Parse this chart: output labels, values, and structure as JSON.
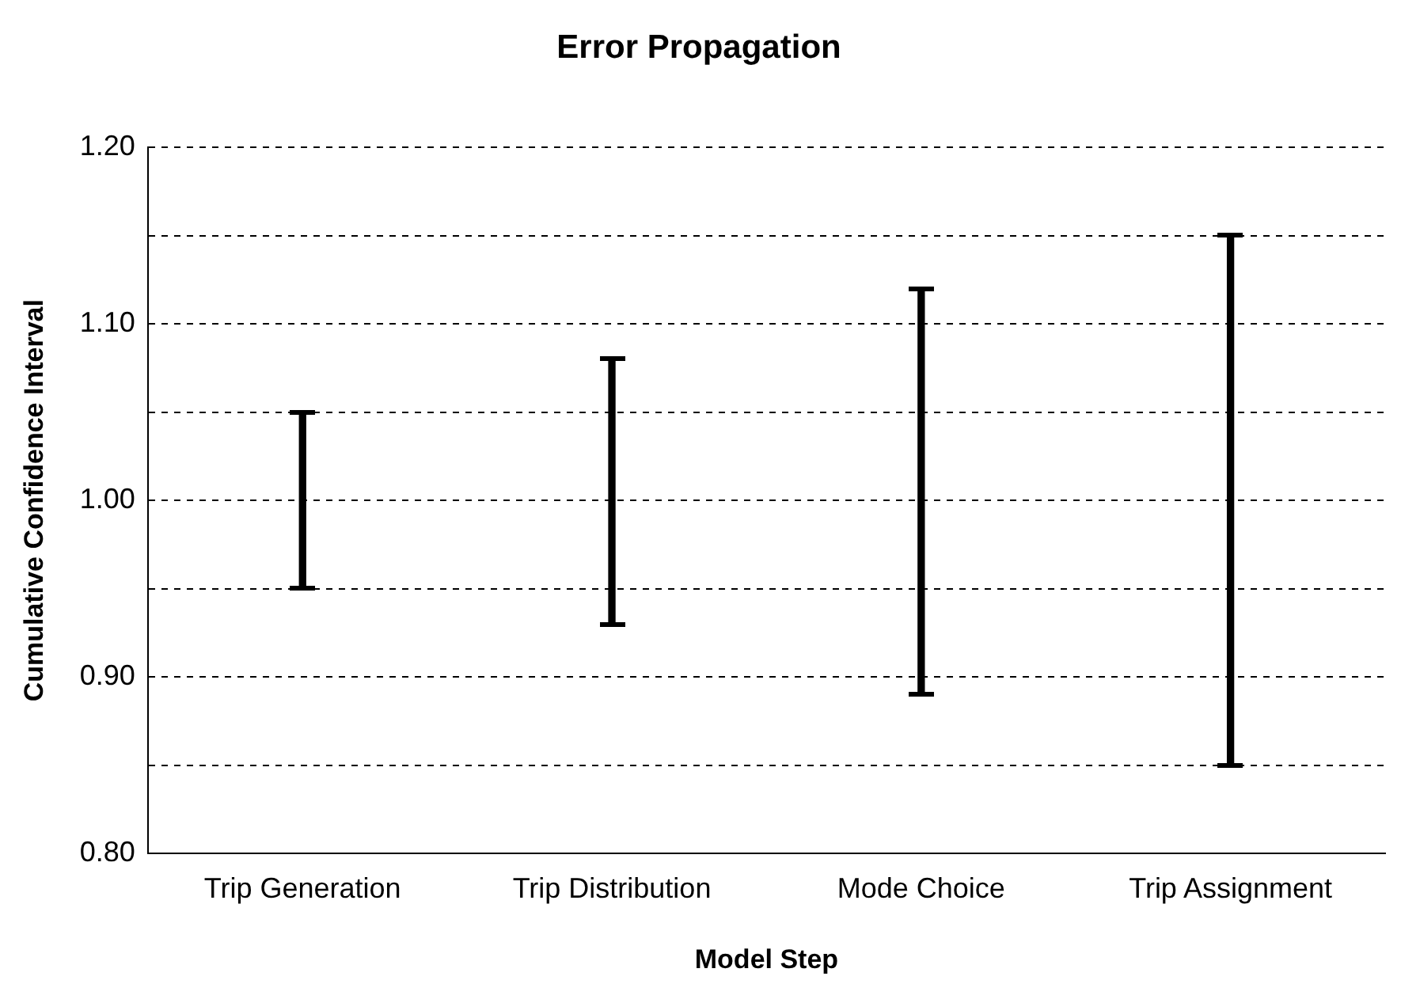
{
  "chart_data": {
    "type": "bar",
    "title": "Error Propagation",
    "xlabel": "Model Step",
    "ylabel": "Cumulative Confidence Interval",
    "categories": [
      "Trip Generation",
      "Trip Distribution",
      "Mode Choice",
      "Trip Assignment"
    ],
    "base": [
      0.95,
      0.93,
      0.89,
      0.85
    ],
    "values": [
      0.1,
      0.15,
      0.23,
      0.3
    ],
    "color": "#000000",
    "ylim": [
      0.8,
      1.2
    ],
    "yticks": [
      {
        "value": 0.8,
        "label": "0.80"
      },
      {
        "value": 0.85,
        "label": null
      },
      {
        "value": 0.9,
        "label": "0.90"
      },
      {
        "value": 0.95,
        "label": null
      },
      {
        "value": 1.0,
        "label": "1.00"
      },
      {
        "value": 1.05,
        "label": null
      },
      {
        "value": 1.1,
        "label": "1.10"
      },
      {
        "value": 1.15,
        "label": null
      },
      {
        "value": 1.2,
        "label": "1.20"
      }
    ],
    "grid": "y",
    "legend": false
  }
}
